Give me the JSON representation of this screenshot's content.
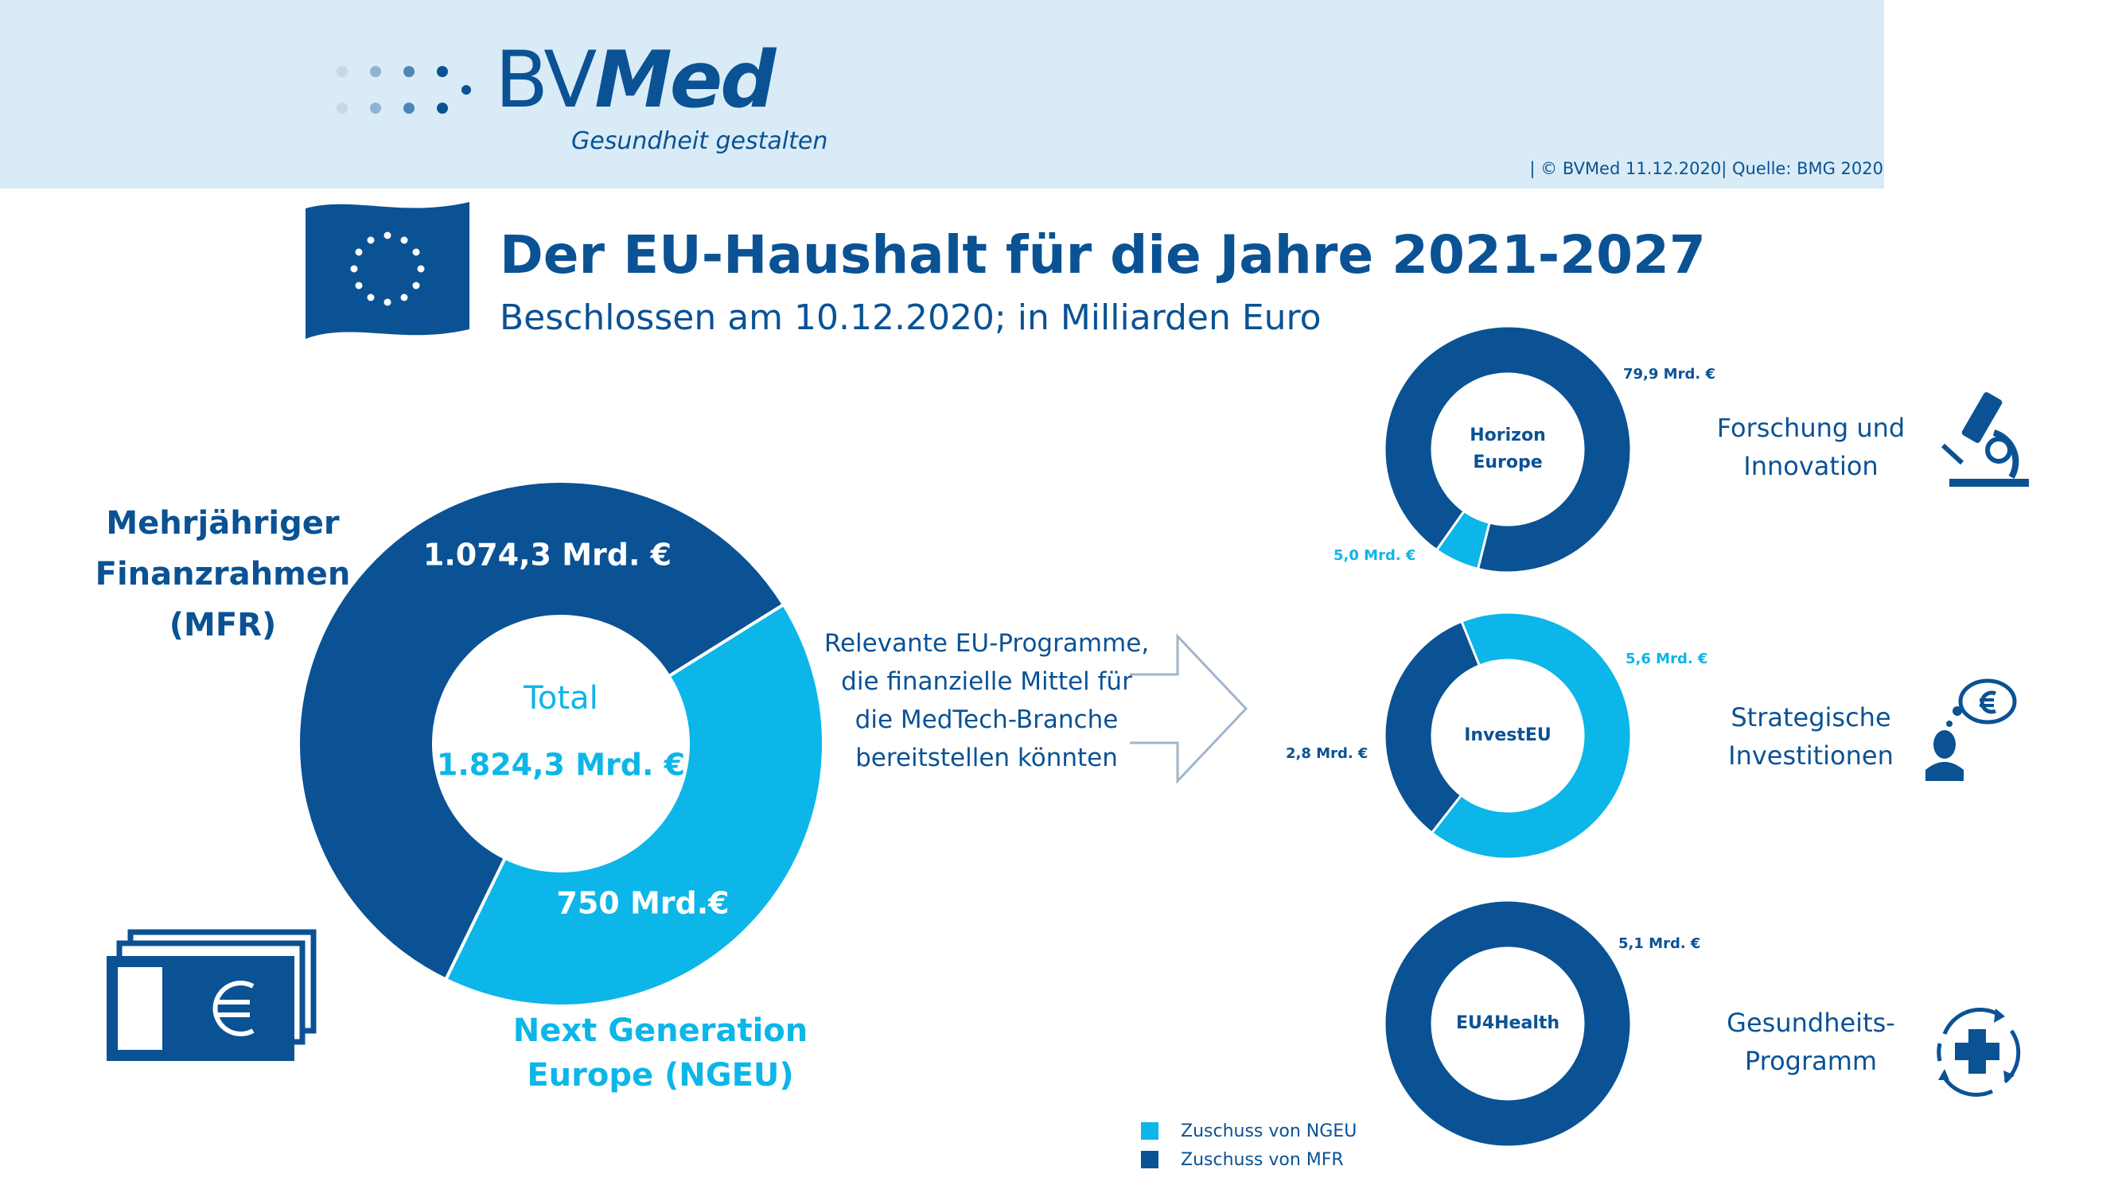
{
  "logo": {
    "brand_prefix": "BV",
    "brand_suffix": "Med",
    "tagline": "Gesundheit gestalten"
  },
  "copyright": "| © BVMed 11.12.2020| Quelle: BMG 2020",
  "title": "Der EU-Haushalt für die Jahre 2021-2027",
  "subtitle": "Beschlossen am 10.12.2020; in Milliarden Euro",
  "labels": {
    "mfr_lines": [
      "Mehrjähriger",
      "Finanzrahmen",
      "(MFR)"
    ],
    "ngeu_lines": [
      "Next Generation",
      "Europe (NGEU)"
    ],
    "programmes_lines": [
      "Relevante EU-Programme,",
      "die finanzielle Mittel für",
      "die MedTech-Branche",
      "bereitstellen könnten"
    ]
  },
  "colors": {
    "mfr": "#0a5294",
    "ngeu": "#0cb6e8",
    "header_bg": "#d8ebf6",
    "text_blue": "#0a5294"
  },
  "chart_data": [
    {
      "type": "pie",
      "subtype": "donut",
      "center_label": "Total",
      "center_value": "1.824,3 Mrd. €",
      "slices": [
        {
          "name": "Mehrjähriger Finanzrahmen (MFR)",
          "value": 1074.3,
          "label": "1.074,3 Mrd. €",
          "color": "#0a5294"
        },
        {
          "name": "Next Generation Europe (NGEU)",
          "value": 750,
          "label": "750 Mrd.€",
          "color": "#0cb6e8"
        }
      ]
    },
    {
      "type": "pie",
      "subtype": "donut",
      "center_label": "Horizon Europe",
      "category": [
        "Forschung und",
        "Innovation"
      ],
      "slices": [
        {
          "name": "Zuschuss von MFR",
          "value": 79.9,
          "label": "79,9 Mrd. €",
          "color": "#0a5294"
        },
        {
          "name": "Zuschuss von NGEU",
          "value": 5.0,
          "label": "5,0 Mrd. €",
          "color": "#0cb6e8"
        }
      ]
    },
    {
      "type": "pie",
      "subtype": "donut",
      "center_label": "InvestEU",
      "category": [
        "Strategische",
        "Investitionen"
      ],
      "slices": [
        {
          "name": "Zuschuss von NGEU",
          "value": 5.6,
          "label": "5,6 Mrd. €",
          "color": "#0cb6e8"
        },
        {
          "name": "Zuschuss von MFR",
          "value": 2.8,
          "label": "2,8 Mrd. €",
          "color": "#0a5294"
        }
      ]
    },
    {
      "type": "pie",
      "subtype": "donut",
      "center_label": "EU4Health",
      "category": [
        "Gesundheits-",
        "Programm"
      ],
      "slices": [
        {
          "name": "Zuschuss von MFR",
          "value": 5.1,
          "label": "5,1 Mrd. €",
          "color": "#0a5294"
        }
      ]
    }
  ],
  "legend": [
    {
      "label": "Zuschuss von NGEU",
      "color": "#0cb6e8"
    },
    {
      "label": "Zuschuss von MFR",
      "color": "#0a5294"
    }
  ],
  "icons": {
    "flag": "eu-flag-icon",
    "money": "euro-banknotes-icon",
    "arrow": "arrow-right-icon",
    "research": "microscope-icon",
    "investment": "person-euro-thought-icon",
    "health": "health-cross-cycle-icon"
  }
}
